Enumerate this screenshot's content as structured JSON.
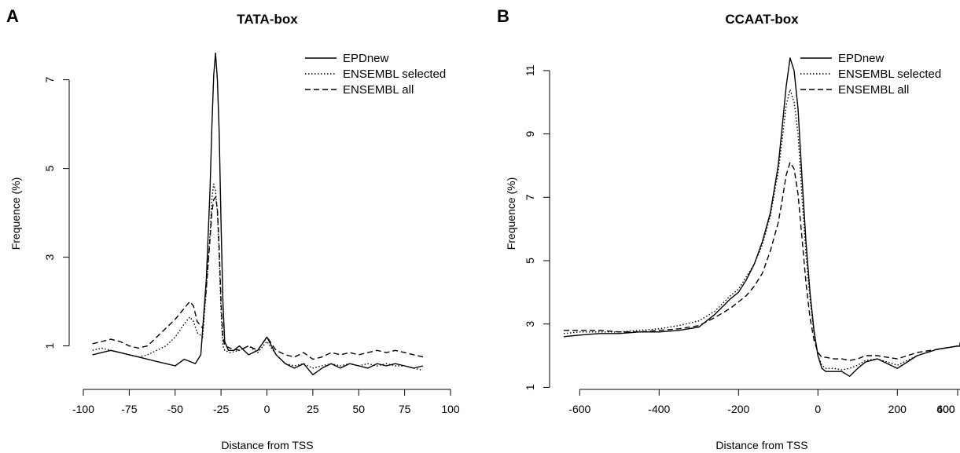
{
  "chart_data": [
    {
      "panel": "A",
      "type": "line",
      "title": "TATA-box",
      "xlabel": "Distance from TSS",
      "ylabel": "Frequence (%)",
      "xlim": [
        -100,
        100
      ],
      "ylim": [
        0,
        7.6
      ],
      "xticks": [
        "-100",
        "-75",
        "-50",
        "-25",
        "0",
        "25",
        "50",
        "75",
        "100"
      ],
      "yticks": [
        "1",
        "3",
        "5",
        "7"
      ],
      "legend": "top-right",
      "series": [
        {
          "name": "EPDnew",
          "style": "solid",
          "x": [
            -95,
            -90,
            -85,
            -80,
            -75,
            -70,
            -65,
            -60,
            -55,
            -50,
            -45,
            -42,
            -39,
            -36,
            -33,
            -31,
            -30,
            -29,
            -28,
            -27,
            -26,
            -25,
            -24,
            -23,
            -21,
            -18,
            -15,
            -10,
            -5,
            0,
            5,
            10,
            15,
            20,
            25,
            30,
            35,
            40,
            45,
            50,
            55,
            60,
            65,
            70,
            75,
            80,
            85
          ],
          "y": [
            0.8,
            0.85,
            0.9,
            0.85,
            0.8,
            0.75,
            0.7,
            0.65,
            0.6,
            0.55,
            0.7,
            0.65,
            0.6,
            0.8,
            2.5,
            4.5,
            5.9,
            7.1,
            7.6,
            7.0,
            5.8,
            3.8,
            2.0,
            1.1,
            0.9,
            0.9,
            1.0,
            0.8,
            0.9,
            1.2,
            0.8,
            0.6,
            0.5,
            0.6,
            0.35,
            0.5,
            0.6,
            0.5,
            0.6,
            0.55,
            0.5,
            0.6,
            0.55,
            0.6,
            0.55,
            0.5,
            0.55
          ]
        },
        {
          "name": "ENSEMBL selected",
          "style": "dotted",
          "x": [
            -95,
            -90,
            -85,
            -80,
            -75,
            -70,
            -65,
            -60,
            -55,
            -50,
            -45,
            -42,
            -40,
            -38,
            -35,
            -33,
            -31,
            -30,
            -29,
            -28,
            -27,
            -26,
            -25,
            -24,
            -23,
            -20,
            -15,
            -10,
            -5,
            0,
            5,
            10,
            15,
            20,
            25,
            30,
            35,
            40,
            45,
            50,
            55,
            60,
            65,
            70,
            75,
            80,
            85
          ],
          "y": [
            0.9,
            0.95,
            0.9,
            0.85,
            0.8,
            0.75,
            0.8,
            0.9,
            1.0,
            1.2,
            1.5,
            1.65,
            1.55,
            1.3,
            1.2,
            2.3,
            3.5,
            4.3,
            4.65,
            4.5,
            4.0,
            3.0,
            1.8,
            1.0,
            0.9,
            0.85,
            0.9,
            1.0,
            0.85,
            1.1,
            0.8,
            0.6,
            0.55,
            0.6,
            0.5,
            0.55,
            0.6,
            0.55,
            0.6,
            0.55,
            0.6,
            0.55,
            0.6,
            0.55,
            0.55,
            0.5,
            0.45
          ]
        },
        {
          "name": "ENSEMBL all",
          "style": "dashed",
          "x": [
            -95,
            -90,
            -85,
            -80,
            -75,
            -70,
            -65,
            -60,
            -55,
            -50,
            -45,
            -42,
            -40,
            -38,
            -35,
            -33,
            -31,
            -30,
            -29,
            -28,
            -27,
            -26,
            -25,
            -24,
            -23,
            -20,
            -15,
            -10,
            -5,
            0,
            5,
            10,
            15,
            20,
            25,
            30,
            35,
            40,
            45,
            50,
            55,
            60,
            65,
            70,
            75,
            80,
            85
          ],
          "y": [
            1.05,
            1.1,
            1.15,
            1.1,
            1.0,
            0.95,
            1.0,
            1.2,
            1.4,
            1.6,
            1.85,
            2.0,
            1.9,
            1.55,
            1.4,
            2.3,
            3.4,
            4.0,
            4.3,
            4.35,
            4.1,
            3.2,
            2.0,
            1.2,
            1.0,
            0.95,
            0.9,
            1.0,
            0.9,
            1.2,
            0.9,
            0.8,
            0.75,
            0.85,
            0.7,
            0.75,
            0.85,
            0.8,
            0.85,
            0.8,
            0.85,
            0.9,
            0.85,
            0.9,
            0.85,
            0.8,
            0.75
          ]
        }
      ]
    },
    {
      "panel": "B",
      "type": "line",
      "title": "CCAAT-box",
      "xlabel": "Distance from TSS",
      "ylabel": "Frequence (%)",
      "xlim": [
        -650,
        650
      ],
      "ylim": [
        1,
        11.5
      ],
      "xticks": [
        "-600",
        "-400",
        "-200",
        "0",
        "200",
        "400",
        "600"
      ],
      "yticks": [
        "1",
        "3",
        "5",
        "7",
        "9",
        "11"
      ],
      "legend": "top-right",
      "series": [
        {
          "name": "EPDnew",
          "style": "solid",
          "x": [
            -650,
            -600,
            -550,
            -500,
            -450,
            -400,
            -350,
            -300,
            -260,
            -220,
            -200,
            -180,
            -160,
            -140,
            -120,
            -100,
            -90,
            -80,
            -70,
            -60,
            -50,
            -40,
            -30,
            -20,
            -10,
            0,
            10,
            20,
            40,
            60,
            80,
            100,
            120,
            150,
            200,
            250,
            300,
            350,
            400,
            450,
            500,
            550,
            600,
            650
          ],
          "y": [
            2.6,
            2.65,
            2.7,
            2.7,
            2.75,
            2.75,
            2.8,
            2.9,
            3.3,
            3.8,
            4.0,
            4.4,
            4.9,
            5.6,
            6.5,
            8.0,
            9.2,
            10.5,
            11.4,
            11.0,
            9.8,
            7.6,
            5.6,
            4.0,
            2.8,
            2.0,
            1.6,
            1.5,
            1.5,
            1.5,
            1.35,
            1.6,
            1.8,
            1.9,
            1.6,
            2.0,
            2.2,
            2.3,
            2.3,
            2.4,
            2.4,
            2.35,
            2.3,
            2.4
          ]
        },
        {
          "name": "ENSEMBL selected",
          "style": "dotted",
          "x": [
            -650,
            -600,
            -550,
            -500,
            -450,
            -400,
            -350,
            -300,
            -260,
            -220,
            -200,
            -180,
            -160,
            -140,
            -120,
            -100,
            -90,
            -80,
            -70,
            -60,
            -50,
            -40,
            -30,
            -20,
            -10,
            0,
            10,
            20,
            40,
            60,
            80,
            100,
            120,
            150,
            200,
            250,
            300,
            350,
            400,
            450,
            500,
            550,
            600,
            650
          ],
          "y": [
            2.7,
            2.75,
            2.75,
            2.75,
            2.8,
            2.85,
            2.95,
            3.1,
            3.4,
            3.9,
            4.1,
            4.5,
            4.9,
            5.5,
            6.4,
            7.8,
            8.8,
            9.9,
            10.4,
            10.0,
            9.0,
            7.0,
            5.2,
            3.8,
            2.7,
            2.0,
            1.7,
            1.6,
            1.6,
            1.55,
            1.6,
            1.7,
            1.85,
            1.9,
            1.7,
            2.0,
            2.2,
            2.3,
            2.35,
            2.4,
            2.35,
            2.4,
            2.3,
            2.35
          ]
        },
        {
          "name": "ENSEMBL all",
          "style": "dashed",
          "x": [
            -650,
            -600,
            -550,
            -500,
            -450,
            -400,
            -350,
            -300,
            -260,
            -220,
            -200,
            -180,
            -160,
            -140,
            -120,
            -100,
            -90,
            -80,
            -70,
            -60,
            -50,
            -40,
            -30,
            -20,
            -10,
            0,
            10,
            20,
            40,
            60,
            80,
            100,
            120,
            150,
            200,
            250,
            300,
            350,
            400,
            450,
            500,
            550,
            600,
            650
          ],
          "y": [
            2.8,
            2.8,
            2.8,
            2.75,
            2.75,
            2.8,
            2.85,
            2.95,
            3.2,
            3.5,
            3.7,
            3.9,
            4.2,
            4.6,
            5.3,
            6.2,
            6.9,
            7.7,
            8.1,
            7.9,
            7.1,
            5.7,
            4.3,
            3.2,
            2.5,
            2.1,
            1.95,
            1.95,
            1.9,
            1.9,
            1.85,
            1.9,
            2.0,
            2.0,
            1.9,
            2.1,
            2.2,
            2.3,
            2.3,
            2.35,
            2.35,
            2.3,
            2.3,
            2.3
          ]
        }
      ]
    }
  ]
}
